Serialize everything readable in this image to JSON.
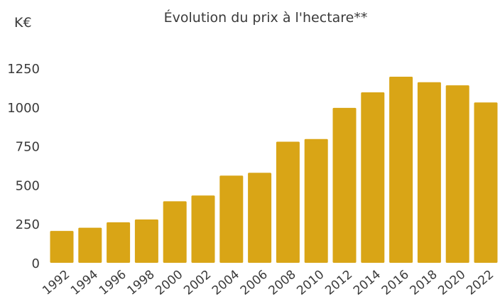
{
  "chart_data": {
    "type": "bar",
    "title": "Évolution du prix à l'hectare**",
    "unit_label": "K€",
    "xlabel": "",
    "ylabel": "",
    "ylim": [
      0,
      1250
    ],
    "yticks": [
      "0",
      "250",
      "500",
      "750",
      "1000",
      "1250"
    ],
    "grid": false,
    "legend": "none",
    "bar_color": "#D9A516",
    "categories": [
      "1992",
      "1994",
      "1996",
      "1998",
      "2000",
      "2002",
      "2004",
      "2006",
      "2008",
      "2010",
      "2012",
      "2014",
      "2016",
      "2018",
      "2020",
      "2022"
    ],
    "values": [
      205,
      225,
      260,
      278,
      395,
      432,
      560,
      578,
      778,
      795,
      995,
      1095,
      1195,
      1160,
      1140,
      1030
    ]
  }
}
